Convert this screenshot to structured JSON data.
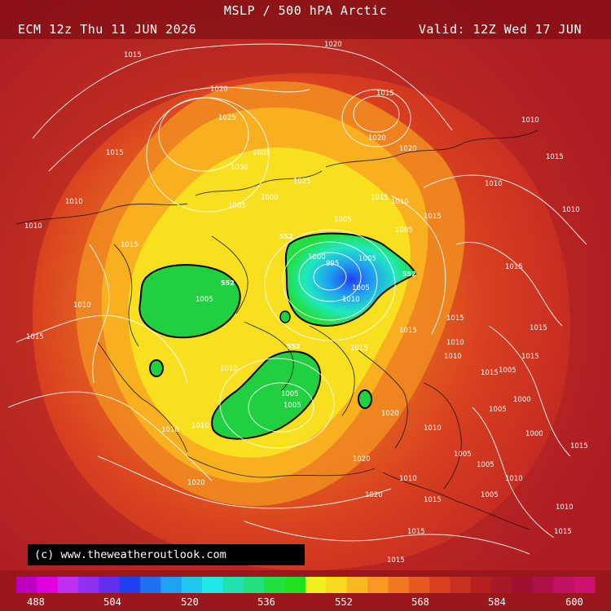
{
  "header": {
    "title": "MSLP / 500 hPA Arctic",
    "model_run": "ECM 12z Thu 11 JUN 2026",
    "valid_time": "Valid: 12Z Wed 17 JUN"
  },
  "credit": "(c) www.theweatheroutlook.com",
  "map": {
    "projection": "north-polar-stereographic",
    "isobar_color": "#ffffff",
    "coastline_color": "#111111",
    "isobar_labels": [
      "1015",
      "1020",
      "1020",
      "1015",
      "1025",
      "1015",
      "1030",
      "1020",
      "1025",
      "1020",
      "1015",
      "1015",
      "1010",
      "1010",
      "1005",
      "1015",
      "1010",
      "1015",
      "1010",
      "1015",
      "1010",
      "1010",
      "1005",
      "1005",
      "1000",
      "995",
      "1005",
      "1005",
      "1010",
      "1015",
      "1010",
      "1015",
      "1010",
      "1005",
      "1005",
      "1010",
      "1010",
      "1000",
      "1000",
      "1005",
      "1015",
      "1020",
      "1020",
      "1010",
      "1015",
      "1015",
      "1010",
      "1005",
      "1005",
      "1015",
      "1005",
      "1015",
      "1010",
      "1015",
      "1005",
      "1010",
      "1015",
      "1005",
      "1000",
      "1005",
      "1010",
      "1020",
      "1015",
      "1015",
      "1015",
      "1020",
      "1010"
    ],
    "height_552_label": "552"
  },
  "legend": {
    "label_values": [
      "488",
      "504",
      "520",
      "536",
      "552",
      "568",
      "584",
      "600"
    ],
    "colors": [
      "#c000c0",
      "#e000e0",
      "#c030f0",
      "#9030f0",
      "#6030f0",
      "#2040f0",
      "#2070f0",
      "#20a0f0",
      "#20c8f0",
      "#20e8e8",
      "#20e0b0",
      "#20e080",
      "#20e040",
      "#20e020",
      "#f0f020",
      "#f8d820",
      "#f8b820",
      "#f89820",
      "#f07820",
      "#e85820",
      "#d84020",
      "#c83020",
      "#b82020",
      "#a81828",
      "#a01030",
      "#b01048",
      "#c01060",
      "#d01070"
    ]
  }
}
